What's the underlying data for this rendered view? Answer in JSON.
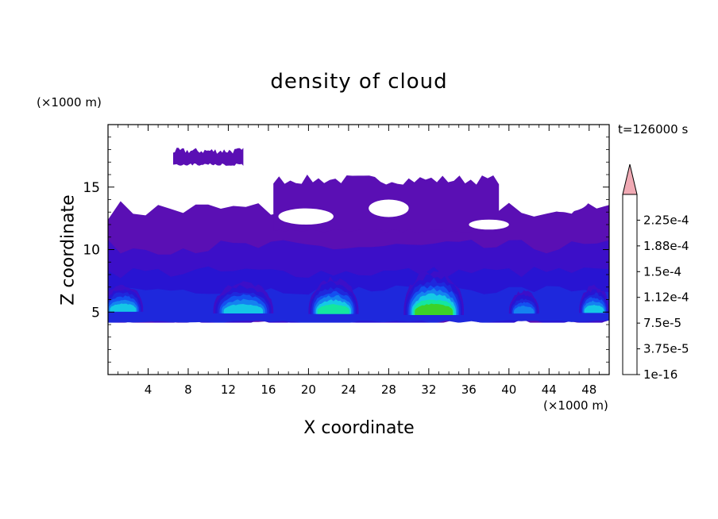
{
  "chart_data": {
    "type": "heatmap",
    "title": "density of cloud",
    "xlabel": "X coordinate",
    "ylabel": "Z coordinate",
    "x_unit": "(×1000 m)",
    "y_unit": "(×1000 m)",
    "time_label": "t=126000 s",
    "xlim": [
      0,
      50
    ],
    "ylim": [
      0,
      20
    ],
    "xticks": [
      4,
      8,
      12,
      16,
      20,
      24,
      28,
      32,
      36,
      40,
      44,
      48
    ],
    "xtick_labels": [
      "4",
      "8",
      "12",
      "16",
      "20",
      "24",
      "28",
      "32",
      "36",
      "40",
      "44",
      "48"
    ],
    "yticks": [
      5,
      10,
      15
    ],
    "ytick_labels": [
      "5",
      "10",
      "15"
    ],
    "colorbar": {
      "levels": [
        1e-16,
        1.875e-05,
        3.75e-05,
        5.625e-05,
        7.5e-05,
        9.375e-05,
        0.0001125,
        0.00013125,
        0.00015,
        0.00016875,
        0.0001875,
        0.00020625,
        0.000225,
        0.00024375
      ],
      "labels": [
        "1e-16",
        "3.75e-5",
        "7.5e-5",
        "1.12e-4",
        "1.5e-4",
        "1.88e-4",
        "2.25e-4"
      ],
      "label_values": [
        1e-16,
        3.75e-05,
        7.5e-05,
        0.000112,
        0.00015,
        0.000188,
        0.000225
      ],
      "colors": [
        "#5a0fb4",
        "#3c0fc8",
        "#2814d2",
        "#1e28dc",
        "#1450f0",
        "#1482f0",
        "#14c8e6",
        "#14e6a0",
        "#3cd228",
        "#b4e614",
        "#f0dc14",
        "#f0a014",
        "#f06414",
        "#e61e14"
      ],
      "extend_color": "#f0aab4"
    },
    "layers": [
      {
        "name": "thin upper cloud",
        "level_index": 0,
        "x": [
          [
            0.0,
            50.0
          ]
        ],
        "z_range": [
          4.2,
          14.0
        ]
      },
      {
        "name": "cirrus patch near z=17.5",
        "level_index": 0,
        "x_range": [
          6.5,
          13.5
        ],
        "z_range": [
          16.8,
          18.2
        ]
      },
      {
        "name": "anvil layer",
        "level_index": 0,
        "x_range": [
          16.5,
          39.0
        ],
        "z_range": [
          11.5,
          16.0
        ]
      },
      {
        "name": "mid layer",
        "level_index": 1,
        "x_range": [
          0.0,
          50.0
        ],
        "z_range": [
          6.5,
          11.0
        ]
      },
      {
        "name": "convective core 1",
        "level_index": 6,
        "x_center": 1.5,
        "z_center": 5.9,
        "width": 4.0,
        "height": 1.2
      },
      {
        "name": "convective core 2",
        "level_index": 6,
        "x_center": 13.5,
        "z_center": 5.9,
        "width": 6.0,
        "height": 1.4
      },
      {
        "name": "convective core 3",
        "level_index": 7,
        "x_center": 22.5,
        "z_center": 6.0,
        "width": 5.0,
        "height": 1.6
      },
      {
        "name": "convective core 4",
        "level_index": 8,
        "x_center": 32.5,
        "z_center": 6.2,
        "width": 6.0,
        "height": 2.0
      },
      {
        "name": "convective core 5",
        "level_index": 5,
        "x_center": 41.5,
        "z_center": 5.6,
        "width": 3.0,
        "height": 1.0
      },
      {
        "name": "convective core 6",
        "level_index": 6,
        "x_center": 48.5,
        "z_center": 5.8,
        "width": 3.0,
        "height": 1.2
      }
    ]
  }
}
